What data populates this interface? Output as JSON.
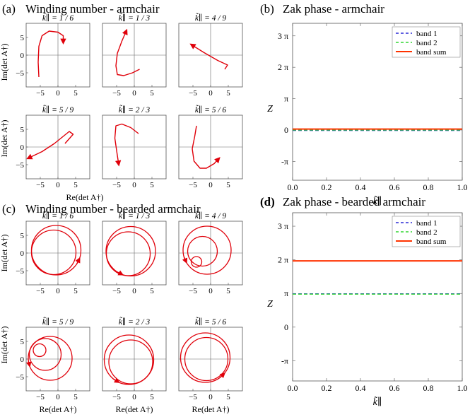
{
  "panels": {
    "a": {
      "label": "(a)",
      "title": "Winding number - armchair"
    },
    "b": {
      "label": "(b)",
      "title": "Zak phase - armchair"
    },
    "c": {
      "label": "(c)",
      "title": "Winding number - bearded armchair"
    },
    "d": {
      "label": "(d)",
      "title": "Zak phase - bearded armchair"
    }
  },
  "winding_axes": {
    "xlabel": "Re(det A†)",
    "ylabel": "Im(det A†)",
    "k_prefix": "k̃∥ = "
  },
  "chart_data": [
    {
      "id": "a",
      "type": "line",
      "title": "Winding number - armchair",
      "xlabel": "Re(det A†)",
      "ylabel": "Im(det A†)",
      "xlim": [
        -9,
        9
      ],
      "ylim": [
        -9,
        9
      ],
      "xticks": [
        -5,
        0,
        5
      ],
      "yticks": [
        -5,
        0,
        5
      ],
      "subplots": [
        {
          "k_label": "1 / 6",
          "points": [
            [
              -5.4,
              -6.2
            ],
            [
              -5.6,
              -2
            ],
            [
              -5.4,
              2.5
            ],
            [
              -4.5,
              5.5
            ],
            [
              -2.5,
              6.8
            ],
            [
              0,
              6.5
            ],
            [
              1.5,
              5.5
            ],
            [
              1.5,
              3.5
            ]
          ],
          "arrow": "end"
        },
        {
          "k_label": "1 / 3",
          "points": [
            [
              1.5,
              -4
            ],
            [
              -0.5,
              -5
            ],
            [
              -3,
              -5.8
            ],
            [
              -4.8,
              -5.5
            ],
            [
              -5.2,
              -3
            ],
            [
              -4.8,
              0.5
            ],
            [
              -3.5,
              4
            ],
            [
              -2.2,
              7
            ]
          ],
          "arrow": "end"
        },
        {
          "k_label": "4 / 9",
          "points": [
            [
              4,
              -4
            ],
            [
              4.8,
              -2.8
            ],
            [
              2,
              -1.5
            ],
            [
              -2,
              0.8
            ],
            [
              -5.5,
              3
            ]
          ],
          "arrow": "end"
        },
        {
          "k_label": "5 / 9",
          "points": [
            [
              2,
              1
            ],
            [
              4.3,
              3.6
            ],
            [
              3.2,
              4.4
            ],
            [
              -1,
              1
            ],
            [
              -4.5,
              -1.3
            ],
            [
              -8.5,
              -3.2
            ]
          ],
          "arrow": "end"
        },
        {
          "k_label": "2 / 3",
          "points": [
            [
              1.2,
              3.8
            ],
            [
              -1,
              5.5
            ],
            [
              -3.5,
              6.5
            ],
            [
              -5.2,
              6
            ],
            [
              -5.5,
              2.5
            ],
            [
              -5,
              -1
            ],
            [
              -4.4,
              -5
            ]
          ],
          "arrow": "end"
        },
        {
          "k_label": "5 / 6",
          "points": [
            [
              -4,
              6
            ],
            [
              -4.5,
              3
            ],
            [
              -5.2,
              -0.5
            ],
            [
              -4.7,
              -4
            ],
            [
              -3,
              -6
            ],
            [
              -1.2,
              -6
            ],
            [
              1,
              -4.7
            ],
            [
              2.4,
              -3.2
            ]
          ],
          "arrow": "end"
        }
      ]
    },
    {
      "id": "b",
      "type": "line",
      "title": "Zak phase - armchair",
      "xlabel": "k̃∥",
      "ylabel": "Z",
      "xlim": [
        0,
        1
      ],
      "ylim_pi": [
        -1.6,
        3.4
      ],
      "xtick_labels": [
        "0.0",
        "0.2",
        "0.4",
        "0.6",
        "0.8",
        "1.0"
      ],
      "ytick_labels": [
        "3 π",
        "2 π",
        "π",
        "0",
        "-π"
      ],
      "series": [
        {
          "name": "band 1",
          "color": "#2a2ad6",
          "style": "dashed",
          "value_pi": -0.012
        },
        {
          "name": "band 2",
          "color": "#31d631",
          "style": "dashed",
          "value_pi": 0.0
        },
        {
          "name": "band sum",
          "color": "#ff3300",
          "style": "solid",
          "value_pi": 0.03
        }
      ]
    },
    {
      "id": "c",
      "type": "line",
      "title": "Winding number - bearded armchair",
      "xlabel": "Re(det A†)",
      "ylabel": "Im(det A†)",
      "xlim": [
        -9,
        9
      ],
      "ylim": [
        -9,
        9
      ],
      "xticks": [
        -5,
        0,
        5
      ],
      "yticks": [
        -5,
        0,
        5
      ],
      "subplots": [
        {
          "k_label": "1 / 6",
          "loops": [
            {
              "cx": -0.5,
              "cy": 0.8,
              "r": 7
            },
            {
              "cx": -1.2,
              "cy": 0.2,
              "r": 6.3
            }
          ],
          "arrow_deg": 340
        },
        {
          "k_label": "1 / 3",
          "loops": [
            {
              "cx": -1,
              "cy": 0.5,
              "r": 7
            },
            {
              "cx": -1.7,
              "cy": -0.2,
              "r": 6.2
            }
          ],
          "arrow_deg": 250
        },
        {
          "k_label": "4 / 9",
          "loops": [
            {
              "cx": -1,
              "cy": 0.8,
              "r": 6.8
            },
            {
              "cx": -2.3,
              "cy": 0.5,
              "r": 4.2
            },
            {
              "cx": -4,
              "cy": -2.5,
              "r": 1.5
            }
          ],
          "arrow_deg": 210
        },
        {
          "k_label": "5 / 9",
          "loops": [
            {
              "cx": -2.2,
              "cy": 0.2,
              "r": 6.2
            },
            {
              "cx": -3.6,
              "cy": 1.3,
              "r": 4.5
            },
            {
              "cx": -5.2,
              "cy": 2.5,
              "r": 1.8
            }
          ],
          "arrow_deg": 200
        },
        {
          "k_label": "2 / 3",
          "loops": [
            {
              "cx": -1.5,
              "cy": -0.2,
              "r": 7
            },
            {
              "cx": -1,
              "cy": -0.8,
              "r": 6.2
            }
          ],
          "arrow_deg": 245
        },
        {
          "k_label": "5 / 6",
          "loops": [
            {
              "cx": -1.5,
              "cy": 0.4,
              "r": 7
            },
            {
              "cx": -1.2,
              "cy": 0,
              "r": 6.1
            }
          ],
          "arrow_deg": 320
        }
      ]
    },
    {
      "id": "d",
      "type": "line",
      "title": "Zak phase - bearded armchair",
      "xlabel": "k̃∥",
      "ylabel": "Z",
      "xlim": [
        0,
        1
      ],
      "ylim_pi": [
        -1.6,
        3.4
      ],
      "xtick_labels": [
        "0.0",
        "0.2",
        "0.4",
        "0.6",
        "0.8",
        "1.0"
      ],
      "ytick_labels": [
        "3 π",
        "2 π",
        "π",
        "0",
        "-π"
      ],
      "series": [
        {
          "name": "band 1",
          "color": "#2a2ad6",
          "style": "dashed",
          "value_pi": 0.99
        },
        {
          "name": "band 2",
          "color": "#31d631",
          "style": "dashed",
          "value_pi": 0.98
        },
        {
          "name": "band sum",
          "color": "#ff3300",
          "style": "solid",
          "value_pi": 1.97
        }
      ]
    }
  ]
}
